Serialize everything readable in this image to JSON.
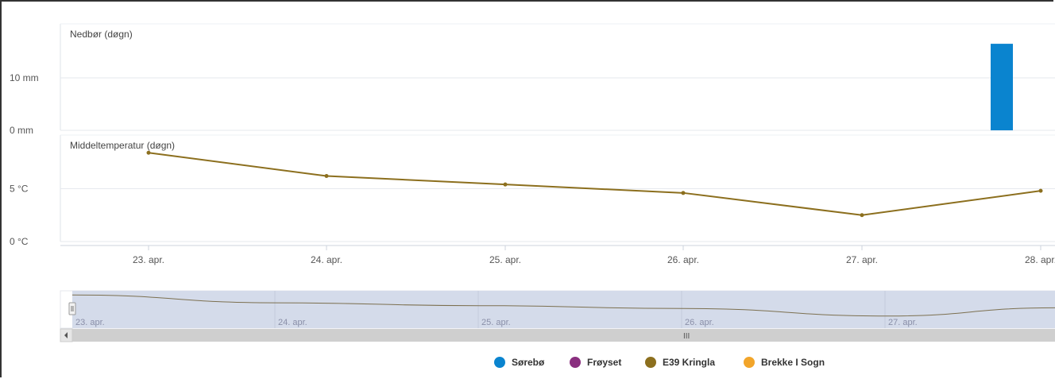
{
  "chart_data": {
    "type": "line",
    "categories": [
      "23. apr.",
      "24. apr.",
      "25. apr.",
      "26. apr.",
      "27. apr.",
      "28. apr."
    ],
    "precipitation": {
      "title": "Nedbør (døgn)",
      "y_ticks": [
        "0 mm",
        "10 mm"
      ],
      "ylim": [
        0,
        20
      ],
      "bars": [
        {
          "series": "Sørebø",
          "x": "28. apr.",
          "value": 16.5
        }
      ]
    },
    "temperature": {
      "title": "Middeltemperatur (døgn)",
      "y_ticks": [
        "0 °C",
        "5 °C"
      ],
      "ylim": [
        0,
        10
      ],
      "series": [
        {
          "name": "E39 Kringla",
          "values": [
            8.4,
            6.2,
            5.4,
            4.6,
            2.5,
            4.8
          ]
        }
      ]
    },
    "navigator_labels": [
      "23. apr.",
      "24. apr.",
      "25. apr.",
      "26. apr.",
      "27. apr."
    ],
    "scrollbar_grip": "III",
    "legend": [
      {
        "name": "Sørebø",
        "color": "#0a84cf"
      },
      {
        "name": "Frøyset",
        "color": "#8a2f7f"
      },
      {
        "name": "E39 Kringla",
        "color": "#8c6f1e"
      },
      {
        "name": "Brekke I Sogn",
        "color": "#f2a52a"
      }
    ]
  }
}
